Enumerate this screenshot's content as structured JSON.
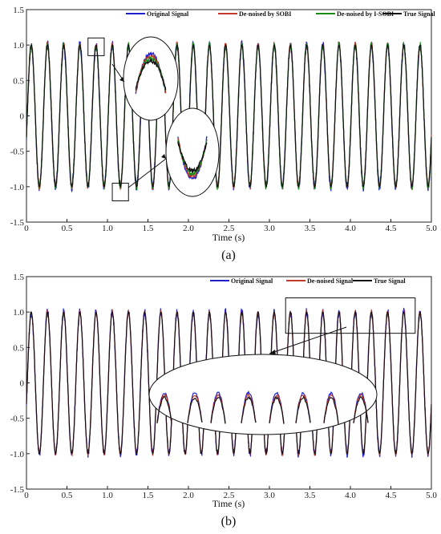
{
  "chart_data": [
    {
      "type": "line",
      "panel_label": "(a)",
      "xlabel": "Time (s)",
      "ylabel": "",
      "xlim": [
        0,
        5
      ],
      "ylim": [
        -1.5,
        1.5
      ],
      "xticks": [
        "0",
        "0.5",
        "1.0",
        "1.5",
        "2.0",
        "2.5",
        "3.0",
        "3.5",
        "4.0",
        "4.5",
        "5.0"
      ],
      "yticks": [
        "-1.5",
        "-1.0",
        "-0.5",
        "0",
        "0.5",
        "1.0",
        "1.5"
      ],
      "signal": {
        "frequency_hz": 5,
        "amplitude": 1.0,
        "phase_rad": -0.3
      },
      "legend_position": "top-right",
      "series": [
        {
          "name": "Original Signal",
          "color": "#1f1fd0"
        },
        {
          "name": "De-noised by SOBI",
          "color": "#c0392b"
        },
        {
          "name": "De-noised by I-SOBI",
          "color": "#1a8c1a"
        },
        {
          "name": "True Signal",
          "color": "#111111"
        }
      ],
      "zoom_boxes": [
        {
          "x_range": [
            0.76,
            0.96
          ],
          "y_range": [
            0.85,
            1.1
          ]
        },
        {
          "x_range": [
            1.06,
            1.26
          ],
          "y_range": [
            -1.2,
            -0.95
          ]
        }
      ]
    },
    {
      "type": "line",
      "panel_label": "(b)",
      "xlabel": "Time (s)",
      "ylabel": "",
      "xlim": [
        0,
        5
      ],
      "ylim": [
        -1.5,
        1.5
      ],
      "xticks": [
        "0",
        "0.5",
        "1.0",
        "1.5",
        "2.0",
        "2.5",
        "3.0",
        "3.5",
        "4.0",
        "4.5",
        "5.0"
      ],
      "yticks": [
        "-1.5",
        "-1.0",
        "-0.5",
        "0",
        "0.5",
        "1.0",
        "1.5"
      ],
      "signal": {
        "frequency_hz": 5,
        "amplitude": 1.0,
        "phase_rad": -0.3
      },
      "legend_position": "top-right",
      "series": [
        {
          "name": "Original Signal",
          "color": "#1f1fd0"
        },
        {
          "name": "De-noised Signal",
          "color": "#c0392b"
        },
        {
          "name": "True Signal",
          "color": "#111111"
        }
      ],
      "zoom_boxes": [
        {
          "x_range": [
            3.2,
            4.8
          ],
          "y_range": [
            0.7,
            1.2
          ]
        }
      ]
    }
  ]
}
